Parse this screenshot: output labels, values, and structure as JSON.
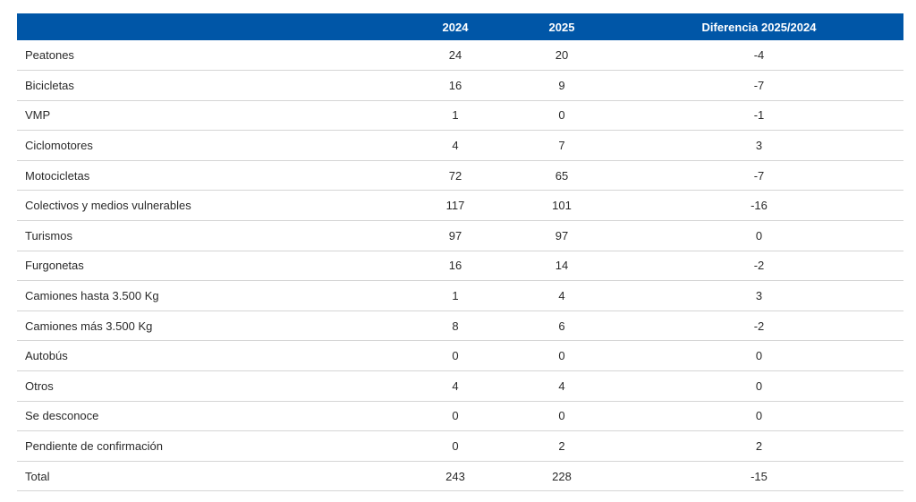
{
  "table": {
    "headers": [
      "",
      "2024",
      "2025",
      "Diferencia 2025/2024"
    ],
    "rows": [
      {
        "label": "Peatones",
        "y2024": "24",
        "y2025": "20",
        "diff": "-4"
      },
      {
        "label": "Bicicletas",
        "y2024": "16",
        "y2025": "9",
        "diff": "-7"
      },
      {
        "label": "VMP",
        "y2024": "1",
        "y2025": "0",
        "diff": "-1"
      },
      {
        "label": "Ciclomotores",
        "y2024": "4",
        "y2025": "7",
        "diff": "3"
      },
      {
        "label": "Motocicletas",
        "y2024": "72",
        "y2025": "65",
        "diff": "-7"
      },
      {
        "label": "Colectivos y medios vulnerables",
        "y2024": "117",
        "y2025": "101",
        "diff": "-16"
      },
      {
        "label": "Turismos",
        "y2024": "97",
        "y2025": "97",
        "diff": "0"
      },
      {
        "label": "Furgonetas",
        "y2024": "16",
        "y2025": "14",
        "diff": "-2"
      },
      {
        "label": "Camiones hasta 3.500 Kg",
        "y2024": "1",
        "y2025": "4",
        "diff": "3"
      },
      {
        "label": "Camiones más 3.500 Kg",
        "y2024": "8",
        "y2025": "6",
        "diff": "-2"
      },
      {
        "label": "Autobús",
        "y2024": "0",
        "y2025": "0",
        "diff": "0"
      },
      {
        "label": "Otros",
        "y2024": "4",
        "y2025": "4",
        "diff": "0"
      },
      {
        "label": "Se desconoce",
        "y2024": "0",
        "y2025": "0",
        "diff": "0"
      },
      {
        "label": "Pendiente de confirmación",
        "y2024": "0",
        "y2025": "2",
        "diff": "2"
      },
      {
        "label": "Total",
        "y2024": "243",
        "y2025": "228",
        "diff": "-15"
      }
    ]
  },
  "colors": {
    "header_bg": "#0056a7",
    "header_text": "#ffffff",
    "row_divider": "#d5d5d5"
  }
}
